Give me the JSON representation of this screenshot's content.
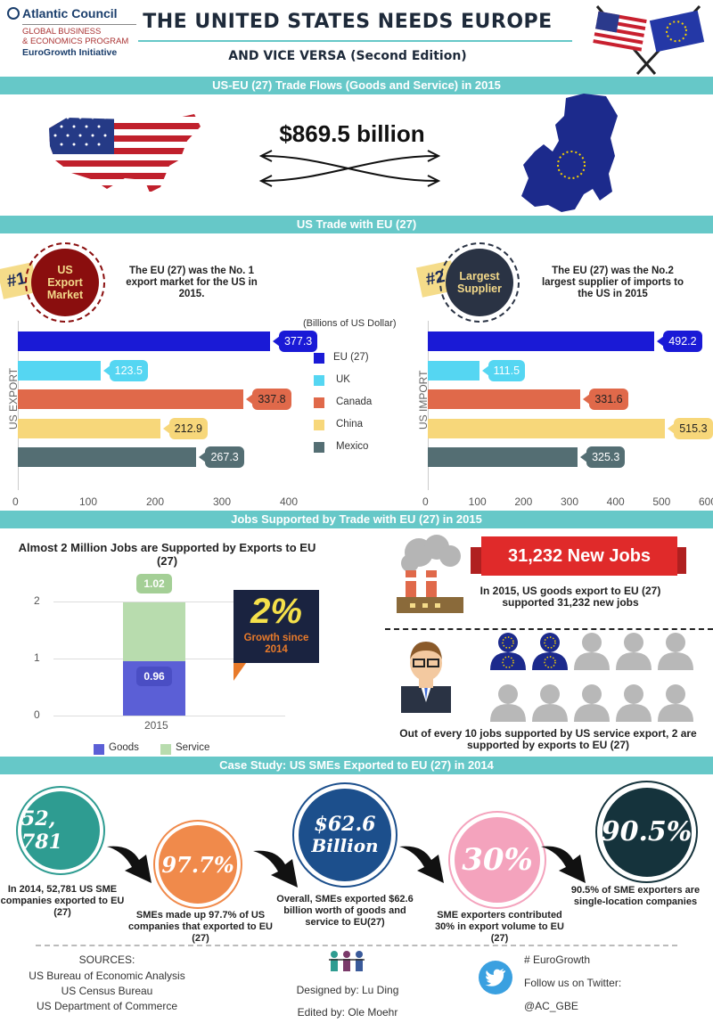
{
  "header": {
    "org_name": "Atlantic Council",
    "program_line1": "GLOBAL BUSINESS",
    "program_line2": "& ECONOMICS PROGRAM",
    "initiative": "EuroGrowth Initiative",
    "title": "THE UNITED STATES NEEDS EUROPE",
    "subtitle": "AND VICE VERSA (Second Edition)"
  },
  "trade_flows": {
    "band": "US-EU (27) Trade Flows (Goods and Service) in 2015",
    "amount": "$869.5 billion"
  },
  "us_trade": {
    "band": "US Trade with EU (27)",
    "export_rank": "#1",
    "export_badge_line1": "US",
    "export_badge_line2": "Export",
    "export_badge_line3": "Market",
    "export_text": "The EU (27) was the No. 1 export market for the US in 2015.",
    "import_rank": "#2",
    "import_badge_line1": "Largest",
    "import_badge_line2": "Supplier",
    "import_text": "The EU (27) was the No.2 largest supplier of imports to the US in 2015",
    "unit_label": "(Billions of US Dollar)",
    "export_axis_label": "US EXPORT",
    "import_axis_label": "US IMPORT"
  },
  "chart_data": [
    {
      "type": "bar",
      "orientation": "horizontal",
      "ylabel": "US EXPORT",
      "categories": [
        "EU (27)",
        "UK",
        "Canada",
        "China",
        "Mexico"
      ],
      "values": [
        377.3,
        123.5,
        337.8,
        212.9,
        267.3
      ],
      "value_labels": [
        "377.3",
        "123.5",
        "337.8",
        "212.9",
        "267.3"
      ],
      "colors": [
        "#1a1ad6",
        "#55d6f2",
        "#e0694a",
        "#f7d77a",
        "#546e73"
      ],
      "xlim": [
        0,
        400
      ],
      "xticks": [
        "0",
        "100",
        "200",
        "300",
        "400"
      ]
    },
    {
      "type": "bar",
      "orientation": "horizontal",
      "ylabel": "US IMPORT",
      "categories": [
        "EU (27)",
        "UK",
        "Canada",
        "China",
        "Mexico"
      ],
      "values": [
        492.2,
        111.5,
        331.6,
        515.3,
        325.3
      ],
      "value_labels": [
        "492.2",
        "111.5",
        "331.6",
        "515.3",
        "325.3"
      ],
      "colors": [
        "#1a1ad6",
        "#55d6f2",
        "#e0694a",
        "#f7d77a",
        "#546e73"
      ],
      "xlim": [
        0,
        600
      ],
      "xticks": [
        "0",
        "100",
        "200",
        "300",
        "400",
        "500",
        "600"
      ]
    },
    {
      "type": "bar",
      "stacked": true,
      "title": "Almost 2 Million Jobs are Supported by Exports to EU (27)",
      "categories": [
        "2015"
      ],
      "series": [
        {
          "name": "Goods",
          "values": [
            0.96
          ],
          "label": "0.96",
          "color": "#5b5fd6"
        },
        {
          "name": "Service",
          "values": [
            1.02
          ],
          "label": "1.02",
          "color": "#b8dcae"
        }
      ],
      "ylim": [
        0,
        2
      ],
      "yticks": [
        "0",
        "1",
        "2"
      ]
    }
  ],
  "legend": [
    "EU (27)",
    "UK",
    "Canada",
    "China",
    "Mexico"
  ],
  "jobs": {
    "band": "Jobs Supported by Trade with EU (27) in 2015",
    "growth_value": "2%",
    "growth_line1": "Growth since",
    "growth_line2": "2014",
    "new_jobs_banner": "31,232 New Jobs",
    "new_jobs_text": "In 2015, US goods export to EU (27) supported 31,232 new jobs",
    "service_text": "Out of every 10 jobs supported by US service export, 2 are supported by exports to EU (27)"
  },
  "case_study": {
    "band": "Case Study: US SMEs Exported to EU (27) in 2014",
    "c1_value": "52, 781",
    "c1_text": "In 2014, 52,781 US SME companies exported to EU (27)",
    "c2_value": "97.7%",
    "c2_text": "SMEs made up 97.7% of US companies that exported to EU (27)",
    "c3_value_line1": "$62.6",
    "c3_value_line2": "Billion",
    "c3_text": "Overall, SMEs exported $62.6 billion worth of goods and service to EU(27)",
    "c4_value": "30%",
    "c4_text": "SME exporters contributed 30% in export volume to EU (27)",
    "c5_value": "90.5%",
    "c5_text": "90.5% of SME exporters are single-location companies",
    "colors": {
      "teal": "#2e9c91",
      "orange": "#f08a4b",
      "navy": "#1c4f8c",
      "pink": "#f4a3bd",
      "dark": "#15333c"
    }
  },
  "footer": {
    "sources_title": "SOURCES:",
    "source1": "US Bureau of Economic Analysis",
    "source2": "US Census Bureau",
    "source3": "US Department of Commerce",
    "designed_by": "Designed by: Lu Ding",
    "edited_by": "Edited by: Ole Moehr",
    "hashtag": "# EuroGrowth",
    "follow": "Follow us on Twitter:",
    "handle": "@AC_GBE"
  }
}
